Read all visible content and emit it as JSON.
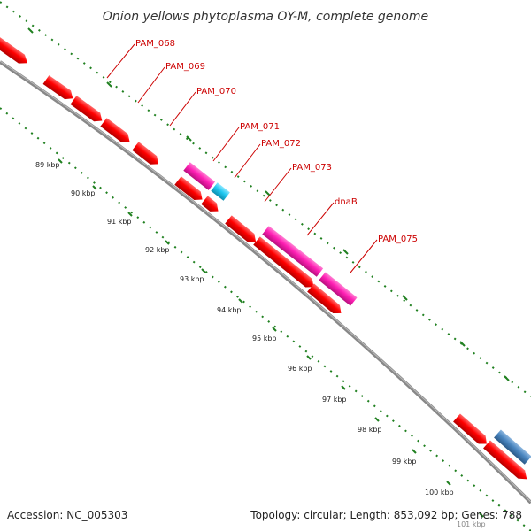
{
  "title": "Onion yellows phytoplasma OY-M, complete genome",
  "footer": {
    "accession": "Accession: NC_005303",
    "summary": "Topology: circular; Length: 853,092 bp; Genes: 788"
  },
  "colors": {
    "background": "#ffffff",
    "backbone": "#888888",
    "gene_red": "#ff0000",
    "gene_magenta": "#ff1fb4",
    "gene_cyan": "#1ec8f0",
    "gene_steelblue": "#4a86c0",
    "ruler_green": "#208020",
    "label_red": "#cc0000"
  },
  "gene_labels": [
    "PAM_068",
    "PAM_069",
    "PAM_070",
    "PAM_071",
    "PAM_072",
    "PAM_073",
    "dnaB",
    "PAM_075"
  ],
  "ruler_ticks": [
    "89 kbp",
    "90 kbp",
    "91 kbp",
    "92 kbp",
    "93 kbp",
    "94 kbp",
    "95 kbp",
    "96 kbp",
    "97 kbp",
    "98 kbp",
    "99 kbp",
    "100 kbp",
    "101 kbp"
  ]
}
